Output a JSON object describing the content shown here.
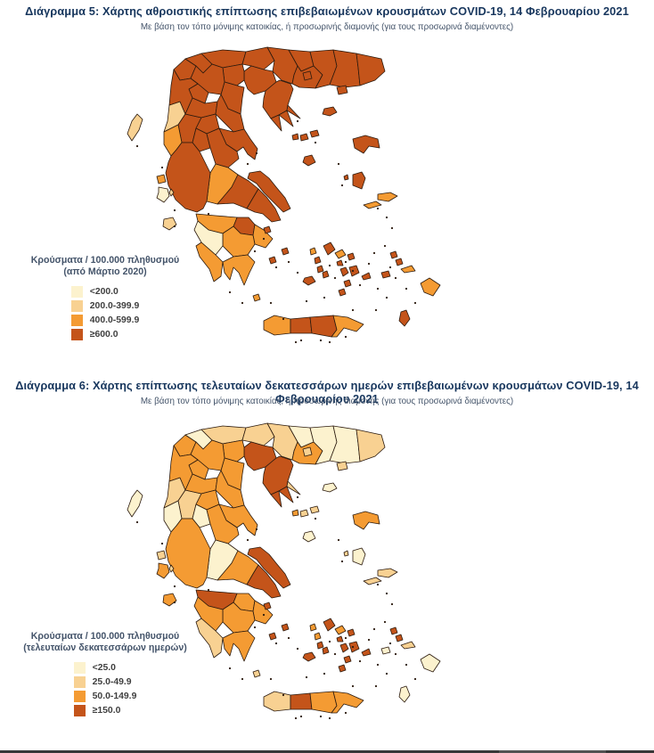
{
  "map_style": {
    "border_color": "#2B1A0E",
    "sea_color": "#FFFFFF"
  },
  "figure5": {
    "title": "Διάγραμμα 5: Χάρτης αθροιστικής επίπτωσης επιβεβαιωμένων κρουσμάτων COVID-19, 14 Φεβρουαρίου 2021",
    "subtitle": "Με βάση τον τόπο μόνιμης κατοικίας, ή προσωρινής διαμονής (για τους προσωρινά διαμένοντες)",
    "legend": {
      "title_line1": "Κρούσματα / 100.000 πληθυσμού",
      "title_line2": "(από Μάρτιο 2020)",
      "classes": [
        {
          "id": "c1",
          "label": "<200.0",
          "color": "#FCF2CE"
        },
        {
          "id": "c2",
          "label": "200.0-399.9",
          "color": "#F8D192"
        },
        {
          "id": "c3",
          "label": "400.0-599.9",
          "color": "#F49B33"
        },
        {
          "id": "c4",
          "label": "≥600.0",
          "color": "#C4541A"
        }
      ]
    },
    "region_classes": {
      "kastoria": "c4",
      "florina": "c4",
      "pella": "c4",
      "kilkis": "c4",
      "serres": "c4",
      "drama": "c4",
      "kavala": "c4",
      "xanthi": "c4",
      "rodopi": "c4",
      "evros": "c4",
      "thessaloniki": "c4",
      "imathia": "c4",
      "pieria": "c4",
      "kozani": "c4",
      "grevena": "c4",
      "chalkidiki": "c4",
      "athos": "c4",
      "sithonia": "c4",
      "kassandra": "c4",
      "thesprotia": "c2",
      "ioannina": "c4",
      "arta": "c4",
      "preveza": "c3",
      "trikala": "c4",
      "larissa": "c4",
      "karditsa": "c4",
      "magnesia": "c4",
      "evrytania": "c4",
      "fthiotida": "c4",
      "phocis": "c3",
      "aetolia": "c4",
      "boeotia": "c4",
      "attica": "c4",
      "corinthia": "c4",
      "achaia": "c3",
      "argolida": "c3",
      "arcadia": "c3",
      "ilia": "c1",
      "messinia": "c3",
      "laconia": "c3",
      "evia": "c4",
      "chania": "c3",
      "rethymno": "c4",
      "heraklion": "c4",
      "lasithi": "c3",
      "corfu": "c2",
      "lefkada": "c3",
      "kefalonia": "c1",
      "ithaki": "c2",
      "zakynthos": "c2",
      "thasos": "c4",
      "samothrace": "c4",
      "limnos": "c4",
      "lesbos": "c4",
      "chios": "c4",
      "psara": "c4",
      "samos": "c3",
      "ikaria": "c3",
      "skiathos": "c4",
      "skopelos": "c4",
      "alonissos": "c4",
      "skyros": "c4",
      "andros": "c4",
      "tinos": "c3",
      "mykonos": "c4",
      "syros": "c4",
      "kea": "c3",
      "kythnos": "c4",
      "serifos": "c4",
      "sifnos": "c4",
      "paros": "c4",
      "naxos": "c4",
      "milos": "c4",
      "ios": "c4",
      "santorini": "c4",
      "amorgos": "c4",
      "rhodes": "c3",
      "kos": "c3",
      "karpathos": "c4",
      "kalymnos": "c4",
      "leros": "c4",
      "astypalaia": "c4",
      "kythira": "c3",
      "aegina": "c4",
      "hydra": "c4",
      "spetses": "c4"
    }
  },
  "figure6": {
    "title": "Διάγραμμα 6: Χάρτης επίπτωσης τελευταίων δεκατεσσάρων ημερών επιβεβαιωμένων κρουσμάτων COVID-19, 14 Φεβρουαρίου 2021",
    "subtitle": "Με βάση τον τόπο μόνιμης κατοικίας, ή προσωρινής διαμονής (για τους προσωρινά διαμένοντες)",
    "legend": {
      "title_line1": "Κρούσματα / 100.000 πληθυσμού",
      "title_line2": "(τελευταίων δεκατεσσάρων ημερών)",
      "classes": [
        {
          "id": "c1",
          "label": "<25.0",
          "color": "#FCF2CE"
        },
        {
          "id": "c2",
          "label": "25.0-49.9",
          "color": "#F8D192"
        },
        {
          "id": "c3",
          "label": "50.0-149.9",
          "color": "#F49B33"
        },
        {
          "id": "c4",
          "label": "≥150.0",
          "color": "#C4541A"
        }
      ]
    },
    "region_classes": {
      "kastoria": "c3",
      "florina": "c1",
      "pella": "c2",
      "kilkis": "c2",
      "serres": "c2",
      "drama": "c1",
      "kavala": "c3",
      "xanthi": "c1",
      "rodopi": "c1",
      "evros": "c2",
      "thessaloniki": "c4",
      "imathia": "c3",
      "pieria": "c3",
      "kozani": "c3",
      "grevena": "c3",
      "chalkidiki": "c4",
      "athos": "c2",
      "sithonia": "c4",
      "kassandra": "c4",
      "thesprotia": "c2",
      "ioannina": "c3",
      "arta": "c2",
      "preveza": "c1",
      "trikala": "c3",
      "larissa": "c3",
      "karditsa": "c3",
      "magnesia": "c3",
      "evrytania": "c1",
      "fthiotida": "c3",
      "phocis": "c1",
      "aetolia": "c3",
      "boeotia": "c3",
      "attica": "c4",
      "corinthia": "c3",
      "achaia": "c4",
      "argolida": "c3",
      "arcadia": "c3",
      "ilia": "c3",
      "messinia": "c2",
      "laconia": "c3",
      "evia": "c4",
      "chania": "c2",
      "rethymno": "c4",
      "heraklion": "c3",
      "lasithi": "c3",
      "corfu": "c1",
      "lefkada": "c2",
      "kefalonia": "c3",
      "ithaki": "c2",
      "zakynthos": "c3",
      "thasos": "c2",
      "samothrace": "c2",
      "limnos": "c1",
      "lesbos": "c3",
      "chios": "c1",
      "psara": "c2",
      "samos": "c2",
      "ikaria": "c2",
      "skiathos": "c3",
      "skopelos": "c2",
      "alonissos": "c2",
      "skyros": "c1",
      "andros": "c4",
      "tinos": "c3",
      "mykonos": "c4",
      "syros": "c4",
      "kea": "c3",
      "kythnos": "c3",
      "serifos": "c4",
      "sifnos": "c4",
      "paros": "c4",
      "naxos": "c4",
      "milos": "c4",
      "ios": "c4",
      "santorini": "c4",
      "amorgos": "c4",
      "rhodes": "c1",
      "kos": "c2",
      "karpathos": "c1",
      "kalymnos": "c4",
      "leros": "c4",
      "astypalaia": "c1",
      "kythira": "c2",
      "aegina": "c4",
      "hydra": "c4",
      "spetses": "c4"
    }
  }
}
